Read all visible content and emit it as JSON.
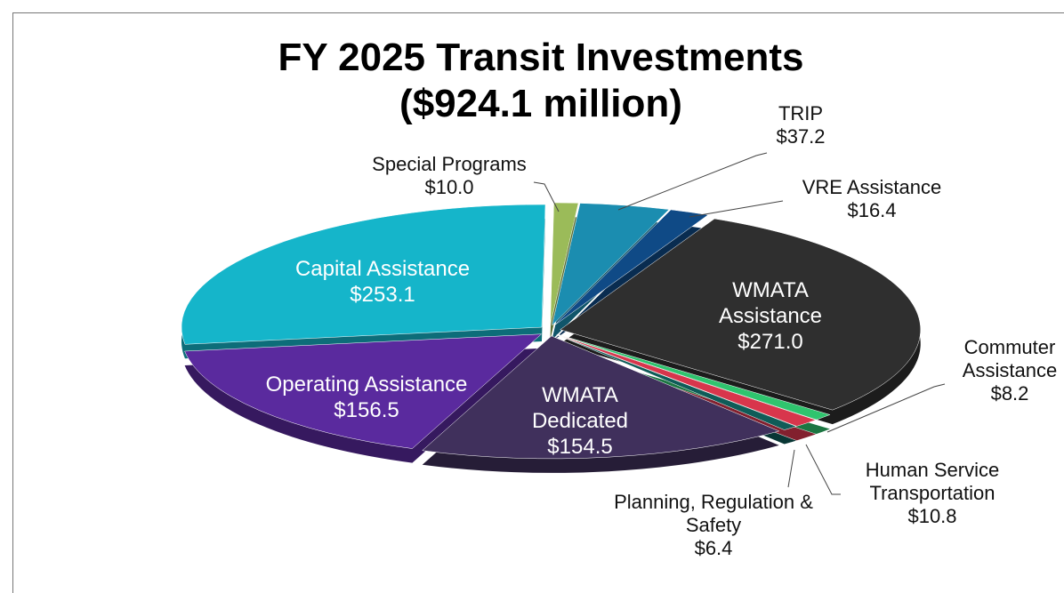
{
  "chart_data": {
    "type": "pie",
    "title": "FY 2025 Transit Investments",
    "subtitle": "($924.1 million)",
    "categories": [
      "Special Programs",
      "TRIP",
      "VRE Assistance",
      "WMATA Assistance",
      "Commuter Assistance",
      "Human Service Transportation",
      "Planning, Regulation & Safety",
      "WMATA Dedicated",
      "Operating Assistance",
      "Capital Assistance"
    ],
    "values": [
      10.0,
      37.2,
      16.4,
      271.0,
      8.2,
      10.8,
      6.4,
      154.5,
      156.5,
      253.1
    ],
    "value_labels": [
      "$10.0",
      "$37.2",
      "$16.4",
      "$271.0",
      "$8.2",
      "$10.8",
      "$6.4",
      "$154.5",
      "$156.5",
      "$253.1"
    ],
    "colors": [
      "#9bbb59",
      "#1b8db0",
      "#0f4a86",
      "#2f2f2f",
      "#2fc46e",
      "#d8364c",
      "#0f5c58",
      "#40305c",
      "#5a2a9e",
      "#15b5ca"
    ]
  }
}
